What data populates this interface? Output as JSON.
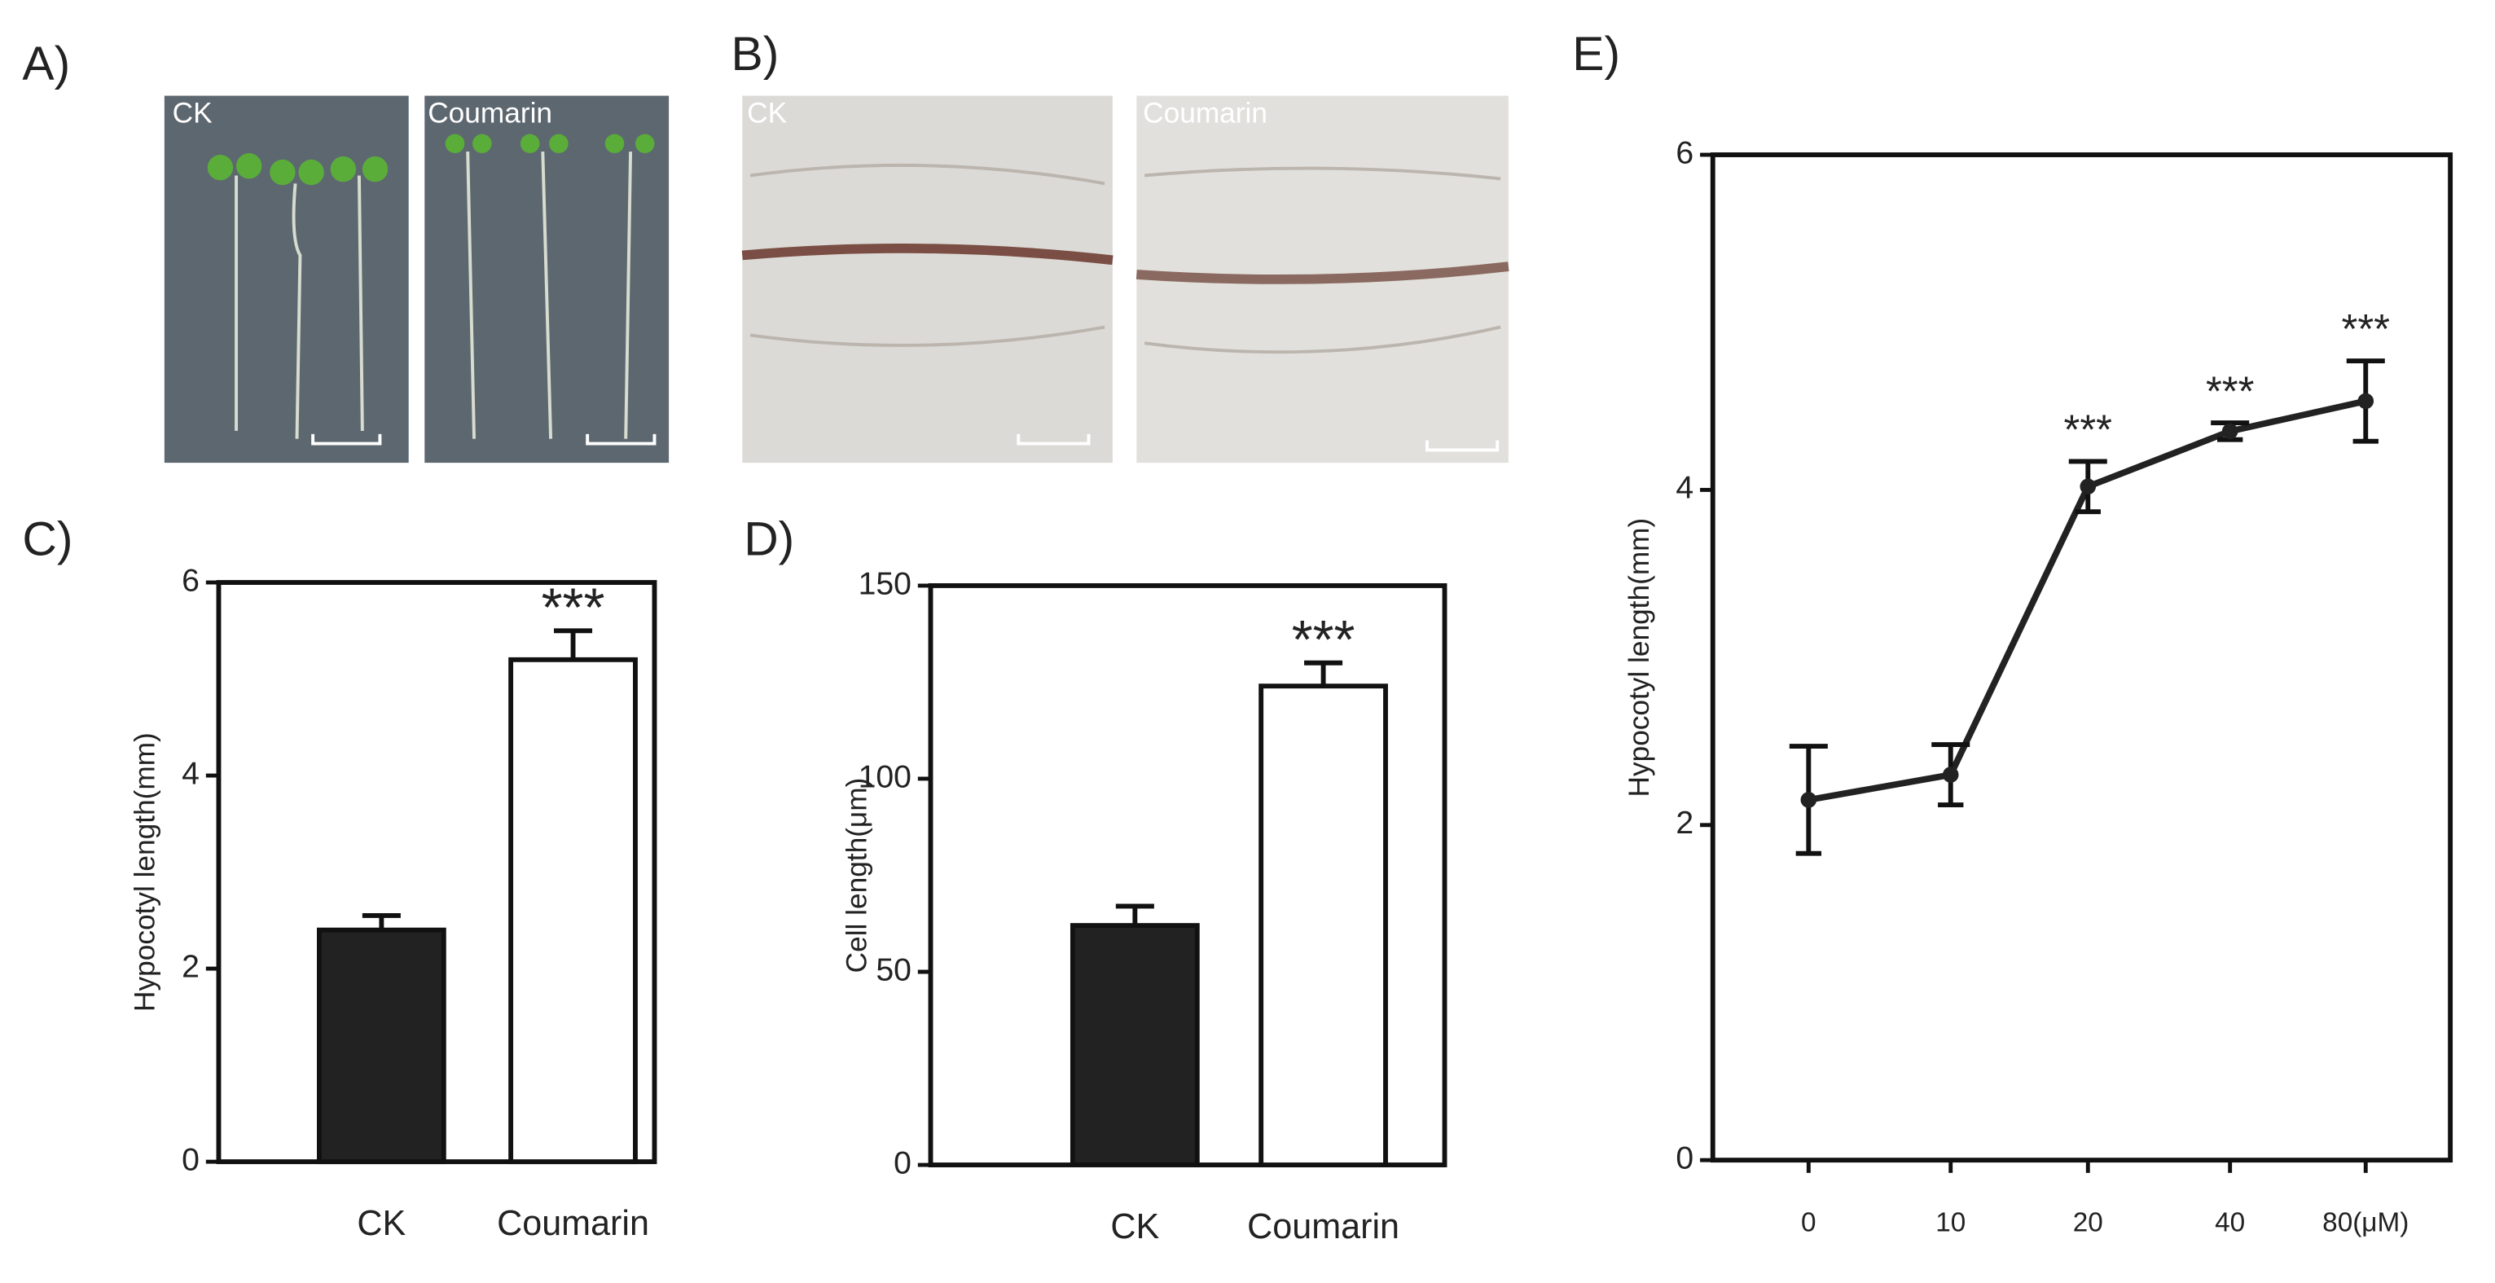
{
  "photos": [
    {
      "label": "A)",
      "captions": [
        "CK",
        "Coumarin"
      ]
    },
    {
      "label": "B)",
      "captions": [
        "CK",
        "Coumarin"
      ]
    }
  ],
  "chart_data": [
    {
      "type": "bar",
      "label": "C)",
      "ylabel": "Hypocotyl length(mm)",
      "categories": [
        "CK",
        "Coumarin"
      ],
      "values": [
        2.4,
        5.2
      ],
      "errors": [
        0.15,
        0.3
      ],
      "colors": [
        "#222222",
        "#ffffff"
      ],
      "significance": [
        null,
        "***"
      ],
      "ylim": [
        0,
        6
      ],
      "yticks": [
        0,
        2,
        4,
        6
      ]
    },
    {
      "type": "bar",
      "label": "D)",
      "ylabel": "Cell length(μm)",
      "categories": [
        "CK",
        "Coumarin"
      ],
      "values": [
        62,
        124
      ],
      "errors": [
        5,
        6
      ],
      "colors": [
        "#222222",
        "#ffffff"
      ],
      "significance": [
        null,
        "***"
      ],
      "ylim": [
        0,
        150
      ],
      "yticks": [
        0,
        50,
        100,
        150
      ]
    },
    {
      "type": "line",
      "label": "E)",
      "ylabel": "Hypocotyl length(mm)",
      "categories": [
        "0",
        "10",
        "20",
        "40",
        "80(μM)"
      ],
      "values": [
        2.15,
        2.3,
        4.02,
        4.35,
        4.53
      ],
      "errors": [
        0.32,
        0.18,
        0.15,
        0.05,
        0.24
      ],
      "color": "#222222",
      "significance": [
        null,
        null,
        "***",
        "***",
        "***"
      ],
      "ylim": [
        0,
        6
      ],
      "yticks": [
        0,
        2,
        4,
        6
      ]
    }
  ]
}
